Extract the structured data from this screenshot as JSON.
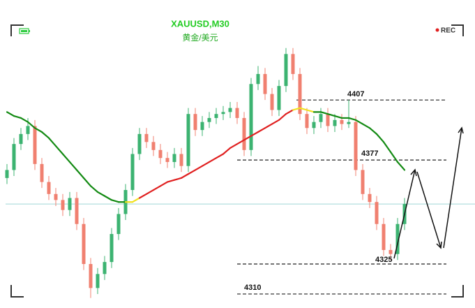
{
  "chart_data": {
    "type": "candlestick",
    "title": "XAUUSD,M30",
    "subtitle": "黄金/美元",
    "badge": "REC",
    "ylim": [
      4303,
      4457
    ],
    "up_color": "#3cb371",
    "down_color": "#f08070",
    "open": [
      4368,
      4372,
      4385,
      4390,
      4394,
      4375,
      4366,
      4360,
      4357,
      4352,
      4358,
      4345,
      4325,
      4313,
      4320,
      4326,
      4340,
      4350,
      4362,
      4380,
      4390,
      4386,
      4382,
      4378,
      4376,
      4380,
      4374,
      4400,
      4392,
      4396,
      4398,
      4400,
      4401,
      4403,
      4398,
      4382,
      4415,
      4420,
      4410,
      4402,
      4414,
      4430,
      4420,
      4400,
      4393,
      4396,
      4400,
      4394,
      4397,
      4395,
      4396,
      4372,
      4360,
      4356,
      4345,
      4332,
      4330,
      4345
    ],
    "high": [
      4375,
      4388,
      4393,
      4398,
      4397,
      4378,
      4369,
      4363,
      4360,
      4361,
      4361,
      4348,
      4328,
      4323,
      4329,
      4343,
      4353,
      4365,
      4383,
      4393,
      4393,
      4389,
      4385,
      4381,
      4383,
      4383,
      4403,
      4403,
      4399,
      4401,
      4403,
      4404,
      4406,
      4406,
      4401,
      4418,
      4424,
      4423,
      4413,
      4417,
      4433,
      4433,
      4423,
      4403,
      4399,
      4403,
      4403,
      4400,
      4400,
      4407,
      4399,
      4375,
      4363,
      4359,
      4348,
      4335,
      4348,
      4358
    ],
    "low": [
      4365,
      4369,
      4382,
      4387,
      4372,
      4363,
      4357,
      4354,
      4349,
      4349,
      4342,
      4322,
      4308,
      4310,
      4317,
      4323,
      4337,
      4347,
      4359,
      4377,
      4383,
      4379,
      4375,
      4373,
      4373,
      4371,
      4371,
      4389,
      4389,
      4393,
      4395,
      4397,
      4398,
      4395,
      4379,
      4379,
      4412,
      4407,
      4399,
      4399,
      4411,
      4417,
      4397,
      4390,
      4390,
      4393,
      4391,
      4391,
      4392,
      4393,
      4369,
      4357,
      4353,
      4342,
      4329,
      4327,
      4327,
      4342
    ],
    "close": [
      4372,
      4385,
      4390,
      4394,
      4375,
      4366,
      4360,
      4357,
      4352,
      4358,
      4345,
      4325,
      4313,
      4320,
      4326,
      4340,
      4350,
      4362,
      4380,
      4390,
      4386,
      4382,
      4378,
      4376,
      4380,
      4374,
      4400,
      4392,
      4396,
      4398,
      4400,
      4401,
      4403,
      4398,
      4382,
      4415,
      4420,
      4410,
      4402,
      4414,
      4430,
      4420,
      4400,
      4393,
      4396,
      4400,
      4394,
      4397,
      4395,
      4396,
      4372,
      4360,
      4356,
      4345,
      4332,
      4330,
      4345,
      4355
    ],
    "moving_average": {
      "values": [
        4401,
        4399,
        4398,
        4396,
        4393,
        4391,
        4388,
        4384,
        4380,
        4376,
        4372,
        4368,
        4364,
        4361,
        4359,
        4357,
        4356,
        4356,
        4356,
        4358,
        4360,
        4362,
        4364,
        4366,
        4367,
        4368,
        4370,
        4372,
        4374,
        4376,
        4378,
        4380,
        4383,
        4385,
        4387,
        4389,
        4391,
        4393,
        4395,
        4397,
        4400,
        4402,
        4403,
        4402,
        4401,
        4401,
        4400,
        4399,
        4398,
        4398,
        4397,
        4395,
        4393,
        4390,
        4386,
        4381,
        4376,
        4372
      ],
      "colors": [
        "#138a13",
        "#138a13",
        "#138a13",
        "#138a13",
        "#138a13",
        "#138a13",
        "#138a13",
        "#138a13",
        "#138a13",
        "#138a13",
        "#138a13",
        "#138a13",
        "#138a13",
        "#138a13",
        "#138a13",
        "#138a13",
        "#138a13",
        "#138a13",
        "#f0e020",
        "#f0e020",
        "#e02020",
        "#e02020",
        "#e02020",
        "#e02020",
        "#e02020",
        "#e02020",
        "#e02020",
        "#e02020",
        "#e02020",
        "#e02020",
        "#e02020",
        "#e02020",
        "#e02020",
        "#e02020",
        "#e02020",
        "#e02020",
        "#e02020",
        "#e02020",
        "#e02020",
        "#e02020",
        "#e02020",
        "#e02020",
        "#f0e020",
        "#f0e020",
        "#f0e020",
        "#138a13",
        "#138a13",
        "#138a13",
        "#138a13",
        "#138a13",
        "#138a13",
        "#138a13",
        "#138a13",
        "#138a13",
        "#138a13",
        "#138a13",
        "#138a13",
        "#138a13"
      ]
    },
    "price_line": 4355,
    "levels": [
      4407,
      4377,
      4325,
      4310
    ]
  }
}
